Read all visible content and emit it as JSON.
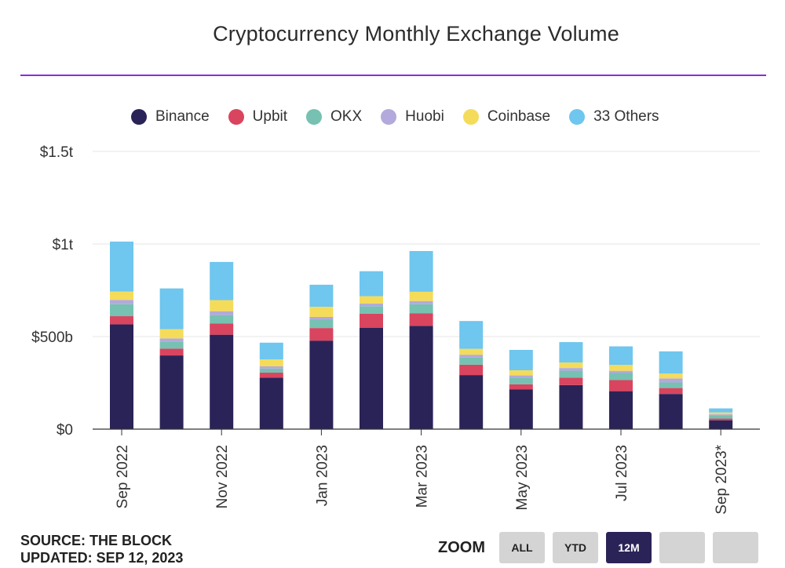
{
  "chart_data": {
    "type": "bar",
    "stacked": true,
    "title": "Cryptocurrency Monthly Exchange Volume",
    "xlabel": "",
    "ylabel": "",
    "ylim": [
      0,
      1500
    ],
    "y_ticks": [
      {
        "value": 0,
        "label": "$0"
      },
      {
        "value": 500,
        "label": "$500b"
      },
      {
        "value": 1000,
        "label": "$1t"
      },
      {
        "value": 1500,
        "label": "$1.5t"
      }
    ],
    "categories": [
      "Sep 2022",
      "Oct 2022",
      "Nov 2022",
      "Dec 2022",
      "Jan 2023",
      "Feb 2023",
      "Mar 2023",
      "Apr 2023",
      "May 2023",
      "Jun 2023",
      "Jul 2023",
      "Aug 2023",
      "Sep 2023*"
    ],
    "x_tick_labels": [
      {
        "index": 0,
        "label": "Sep 2022"
      },
      {
        "index": 2,
        "label": "Nov 2022"
      },
      {
        "index": 4,
        "label": "Jan 2023"
      },
      {
        "index": 6,
        "label": "Mar 2023"
      },
      {
        "index": 8,
        "label": "May 2023"
      },
      {
        "index": 10,
        "label": "Jul 2023"
      },
      {
        "index": 12,
        "label": "Sep 2023*"
      }
    ],
    "series": [
      {
        "name": "Binance",
        "color": "#2a2357",
        "values": [
          566,
          398,
          510,
          278,
          478,
          548,
          558,
          292,
          214,
          238,
          205,
          190,
          48
        ]
      },
      {
        "name": "Upbit",
        "color": "#d9445f",
        "values": [
          44,
          37,
          60,
          27,
          68,
          76,
          67,
          56,
          28,
          40,
          60,
          32,
          9
        ]
      },
      {
        "name": "OKX",
        "color": "#76c1b2",
        "values": [
          65,
          38,
          46,
          22,
          45,
          40,
          50,
          38,
          36,
          38,
          38,
          30,
          15
        ]
      },
      {
        "name": "Huobi",
        "color": "#b3a9dc",
        "values": [
          23,
          17,
          21,
          12,
          15,
          14,
          17,
          16,
          12,
          14,
          12,
          22,
          8
        ]
      },
      {
        "name": "Coinbase",
        "color": "#f4dc5a",
        "values": [
          45,
          50,
          60,
          38,
          55,
          40,
          50,
          32,
          28,
          30,
          32,
          26,
          10
        ]
      },
      {
        "name": "33 Others",
        "color": "#6fc6ee",
        "values": [
          270,
          220,
          206,
          90,
          119,
          135,
          220,
          150,
          110,
          110,
          100,
          120,
          22
        ]
      }
    ]
  },
  "footer": {
    "source": "SOURCE: THE BLOCK",
    "updated": "UPDATED: SEP 12, 2023"
  },
  "zoom": {
    "label": "ZOOM",
    "buttons": [
      "ALL",
      "YTD",
      "12M",
      "",
      ""
    ],
    "active_index": 2
  }
}
